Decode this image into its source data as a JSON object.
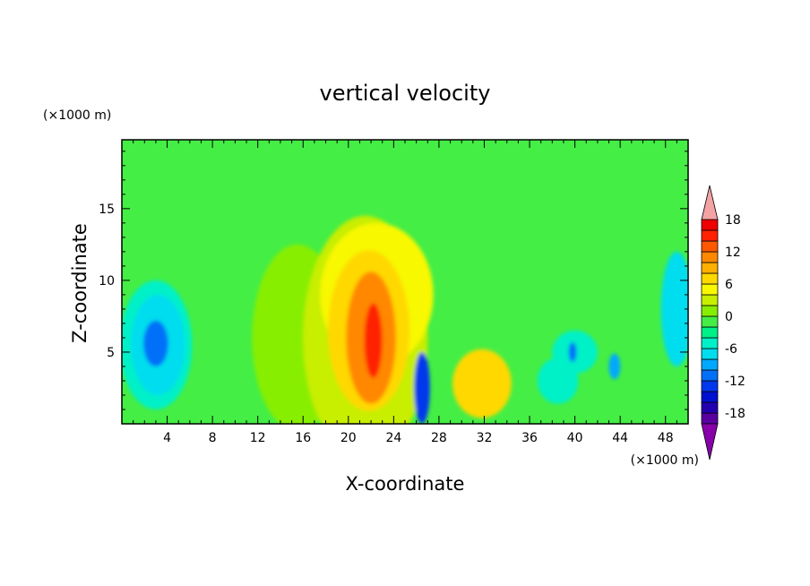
{
  "chart_data": {
    "type": "heatmap",
    "title": "vertical velocity",
    "xlabel": "X-coordinate",
    "ylabel": "Z-coordinate",
    "x_unit": "(×1000 m)",
    "y_unit": "(×1000 m)",
    "xlim": [
      0,
      50
    ],
    "ylim": [
      0,
      19.8
    ],
    "x_ticks": [
      4,
      8,
      12,
      16,
      20,
      24,
      28,
      32,
      36,
      40,
      44,
      48
    ],
    "y_ticks": [
      5,
      10,
      15
    ],
    "x_tick_labels": [
      "4",
      "8",
      "12",
      "16",
      "20",
      "24",
      "28",
      "32",
      "36",
      "40",
      "44",
      "48"
    ],
    "y_tick_labels": [
      "5",
      "10",
      "15"
    ],
    "background_value": -2,
    "features": [
      {
        "x": 15.5,
        "z": 6.0,
        "rx": 4.0,
        "rz": 6.5,
        "value": 1.5
      },
      {
        "x": 21.5,
        "z": 6.0,
        "rx": 5.5,
        "rz": 8.5,
        "value": 3
      },
      {
        "x": 22.5,
        "z": 9.0,
        "rx": 5.0,
        "rz": 5.0,
        "value": 4
      },
      {
        "x": 21.8,
        "z": 6.5,
        "rx": 3.6,
        "rz": 5.6,
        "value": 7
      },
      {
        "x": 22.0,
        "z": 6.0,
        "rx": 2.2,
        "rz": 4.6,
        "value": 11
      },
      {
        "x": 22.2,
        "z": 5.8,
        "rx": 0.8,
        "rz": 2.6,
        "value": 15
      },
      {
        "x": 26.5,
        "z": 2.5,
        "rx": 0.7,
        "rz": 2.5,
        "value": -13
      },
      {
        "x": 31.8,
        "z": 2.8,
        "rx": 2.6,
        "rz": 2.4,
        "value": 7
      },
      {
        "x": 3.0,
        "z": 5.5,
        "rx": 3.2,
        "rz": 4.5,
        "value": -5
      },
      {
        "x": 3.2,
        "z": 5.5,
        "rx": 2.4,
        "rz": 3.5,
        "value": -8
      },
      {
        "x": 3.0,
        "z": 5.6,
        "rx": 1.1,
        "rz": 1.6,
        "value": -11
      },
      {
        "x": 40.0,
        "z": 5.0,
        "rx": 2.0,
        "rz": 1.5,
        "value": -6
      },
      {
        "x": 43.5,
        "z": 4.0,
        "rx": 0.5,
        "rz": 0.9,
        "value": -9
      },
      {
        "x": 39.8,
        "z": 5.0,
        "rx": 0.35,
        "rz": 0.7,
        "value": -11
      },
      {
        "x": 49.0,
        "z": 8.0,
        "rx": 1.4,
        "rz": 4.0,
        "value": -7
      },
      {
        "x": 38.5,
        "z": 3.0,
        "rx": 1.8,
        "rz": 1.6,
        "value": -5
      }
    ],
    "colorbar": {
      "levels": [
        -20,
        -18,
        -16,
        -14,
        -12,
        -10,
        -8,
        -6,
        -4,
        -2,
        0,
        2,
        4,
        6,
        8,
        10,
        12,
        14,
        16,
        18,
        20
      ],
      "labels": [
        "18",
        "12",
        "6",
        "0",
        "-6",
        "-12",
        "-18"
      ],
      "label_values": [
        18,
        12,
        6,
        0,
        -6,
        -12,
        -18
      ],
      "under_color": "#8800aa",
      "over_color": "#f3a3a3",
      "colors": [
        "#5a00a0",
        "#2200b0",
        "#0010d0",
        "#0038ee",
        "#0070f8",
        "#00a8ff",
        "#00ddee",
        "#00f0c8",
        "#00f088",
        "#44ee44",
        "#88ee00",
        "#c8ee00",
        "#f8f800",
        "#ffd800",
        "#ffb000",
        "#ff8800",
        "#ff5800",
        "#ff2200",
        "#ee0000",
        "#f3a3a3"
      ]
    }
  }
}
